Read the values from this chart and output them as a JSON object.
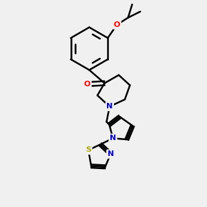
{
  "background_color": "#f0f0f0",
  "bond_color": "#000000",
  "bond_width": 1.8,
  "atom_colors": {
    "O": "#ff0000",
    "N": "#0000cc",
    "S": "#aaaa00",
    "C": "#000000"
  },
  "font_size": 8,
  "fig_width": 3.0,
  "fig_height": 3.0,
  "dpi": 100
}
